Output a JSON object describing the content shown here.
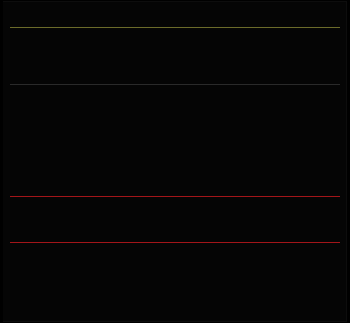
{
  "header": {
    "left": "",
    "right": ""
  },
  "rows": [
    {
      "label": "",
      "value": "",
      "side": "",
      "sep": ""
    },
    {
      "label": "",
      "value": "",
      "side": "",
      "sep": "olive"
    },
    {
      "label": "",
      "value": "",
      "side": "",
      "sep": ""
    },
    {
      "label": "",
      "value": "",
      "side": "",
      "sep": ""
    },
    {
      "label": "",
      "value": "",
      "side": "",
      "sep": "gap"
    },
    {
      "label": "",
      "value": "",
      "side": "",
      "valueColor": "red",
      "sep": ""
    },
    {
      "label": "",
      "value": "",
      "side": "",
      "valueColor": "red",
      "sep": ""
    },
    {
      "label": "",
      "value": "",
      "side": "",
      "sep": ""
    },
    {
      "label": "",
      "value": "",
      "side": "",
      "sep": "gray"
    },
    {
      "label": "",
      "value": "",
      "side": "",
      "sep": ""
    },
    {
      "label": "",
      "value": "",
      "side": "",
      "labelColor": "red",
      "sep": ""
    },
    {
      "label": "",
      "value": "",
      "side": "",
      "sep": ""
    },
    {
      "label": "",
      "value": "",
      "side": "",
      "valueColor": "red",
      "sep": ""
    },
    {
      "label": "",
      "value": "",
      "side": "",
      "sep": "olive"
    },
    {
      "label": "",
      "value": "",
      "side": "",
      "sep": ""
    },
    {
      "label": "",
      "value": "",
      "side": "",
      "labelColor": "red",
      "valueColor": "red",
      "sep": ""
    },
    {
      "label": "",
      "value": "",
      "side": "",
      "valueColor": "red",
      "sep": ""
    },
    {
      "label": "",
      "value": "",
      "side": "",
      "valueColor": "red",
      "sep": ""
    },
    {
      "label": "",
      "value": "",
      "side": "",
      "sep": "gap"
    },
    {
      "label": "",
      "value": "",
      "side": "",
      "sep": ""
    },
    {
      "label": "",
      "value": "",
      "side": "",
      "valueColor": "red",
      "sep": ""
    },
    {
      "label": "",
      "value": "",
      "side": "",
      "sep": ""
    },
    {
      "label": "",
      "value": "",
      "side": "",
      "sep": "red"
    },
    {
      "label": "",
      "value": "",
      "side": "",
      "sep": ""
    },
    {
      "label": "",
      "value": "",
      "side": "",
      "sep": "gap"
    },
    {
      "label": "",
      "value": "",
      "side": "",
      "sep": ""
    },
    {
      "label": "",
      "value": "",
      "side": "",
      "sep": ""
    },
    {
      "label": "",
      "value": "",
      "side": "",
      "sep": "red"
    },
    {
      "label": "",
      "value": "",
      "side": "",
      "valueColor": "red",
      "sideColor": "red",
      "sep": "gap"
    },
    {
      "label": "",
      "value": "",
      "side": "",
      "sep": ""
    },
    {
      "label": "",
      "value": "",
      "side": "",
      "sep": ""
    },
    {
      "label": "",
      "value": "",
      "side": "",
      "valueColor": "red",
      "sep": ""
    },
    {
      "label": "",
      "value": "",
      "side": "",
      "valueColor": "red",
      "sep": ""
    }
  ],
  "colors": {
    "accent": "#e0242a",
    "background": "#000000",
    "text": "#cfcfcf"
  }
}
